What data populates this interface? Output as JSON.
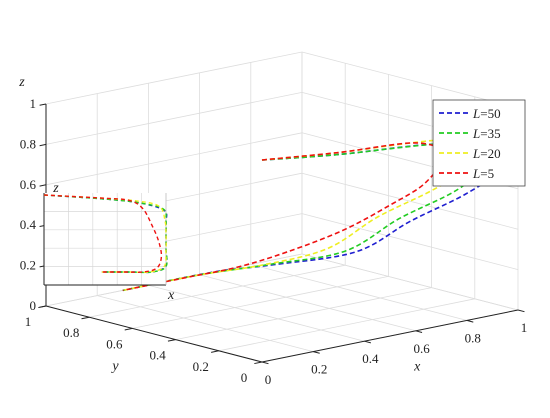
{
  "chart_data": {
    "type": "line",
    "projection": "3d",
    "xlabel": "x",
    "ylabel": "y",
    "zlabel": "z",
    "x_ticks": [
      "0",
      "0.2",
      "0.4",
      "0.6",
      "0.8",
      "1"
    ],
    "y_ticks": [
      "0",
      "0.2",
      "0.4",
      "0.6",
      "0.8",
      "1"
    ],
    "z_ticks": [
      "0",
      "0.2",
      "0.4",
      "0.6",
      "0.8",
      "1"
    ],
    "xlim": [
      0,
      1
    ],
    "ylim": [
      0,
      1
    ],
    "zlim": [
      0,
      1
    ],
    "grid": true,
    "legend_position": "right",
    "inset": {
      "xlabel": "x",
      "zlabel": "z",
      "view": "x-z projection"
    },
    "series": [
      {
        "name": "L=50",
        "label_var": "L",
        "label_val": "=50",
        "color": "#1f1fd0",
        "points": [
          [
            0,
            0,
            1
          ],
          [
            0.3,
            0,
            0.95
          ],
          [
            0.7,
            0,
            0.9
          ],
          [
            0.98,
            0,
            0.8
          ],
          [
            1,
            0.1,
            0.65
          ],
          [
            1,
            0.25,
            0.5
          ],
          [
            1,
            0.5,
            0.3
          ],
          [
            1,
            0.75,
            0.08
          ],
          [
            0.85,
            0.95,
            0
          ],
          [
            0.65,
            1,
            0
          ],
          [
            0.3,
            1,
            0
          ]
        ]
      },
      {
        "name": "L=35",
        "label_var": "L",
        "label_val": "=35",
        "color": "#22cc22",
        "points": [
          [
            0,
            0,
            1
          ],
          [
            0.3,
            0,
            0.95
          ],
          [
            0.7,
            0,
            0.9
          ],
          [
            0.97,
            0,
            0.82
          ],
          [
            1,
            0.15,
            0.66
          ],
          [
            1,
            0.3,
            0.5
          ],
          [
            1,
            0.55,
            0.3
          ],
          [
            1,
            0.8,
            0.07
          ],
          [
            0.85,
            0.96,
            0
          ],
          [
            0.6,
            1,
            0
          ],
          [
            0.3,
            1,
            0
          ]
        ]
      },
      {
        "name": "L=20",
        "label_var": "L",
        "label_val": "=20",
        "color": "#eeee22",
        "points": [
          [
            0,
            0,
            1
          ],
          [
            0.3,
            0,
            0.96
          ],
          [
            0.7,
            0,
            0.92
          ],
          [
            0.93,
            0,
            0.85
          ],
          [
            0.99,
            0.2,
            0.66
          ],
          [
            1,
            0.4,
            0.48
          ],
          [
            1,
            0.65,
            0.28
          ],
          [
            0.98,
            0.86,
            0.07
          ],
          [
            0.82,
            0.97,
            0
          ],
          [
            0.6,
            1,
            0
          ],
          [
            0.3,
            1,
            0
          ]
        ]
      },
      {
        "name": "L=5",
        "label_var": "L",
        "label_val": "=5",
        "color": "#ee1111",
        "points": [
          [
            0,
            0,
            1
          ],
          [
            0.3,
            0,
            0.96
          ],
          [
            0.6,
            0,
            0.93
          ],
          [
            0.75,
            0.05,
            0.82
          ],
          [
            0.85,
            0.25,
            0.6
          ],
          [
            0.92,
            0.5,
            0.4
          ],
          [
            0.95,
            0.75,
            0.2
          ],
          [
            0.9,
            0.95,
            0.05
          ],
          [
            0.75,
            1,
            0
          ],
          [
            0.55,
            1,
            0
          ],
          [
            0.3,
            1,
            0
          ]
        ]
      }
    ]
  }
}
